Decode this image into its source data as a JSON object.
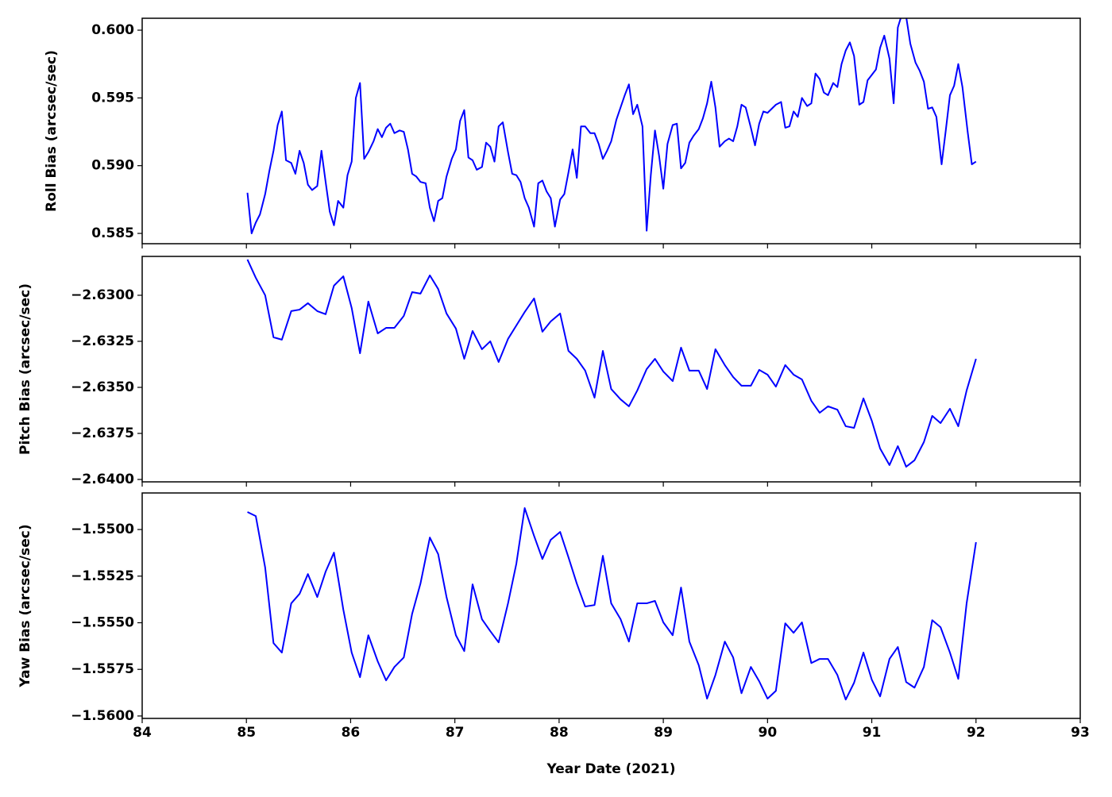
{
  "chart_data": [
    {
      "type": "line",
      "ylabel": "Roll Bias (arcsec/sec)",
      "color": "blue",
      "xlim": [
        84,
        93
      ],
      "xticks": [
        84,
        85,
        86,
        87,
        88,
        89,
        90,
        91,
        92,
        93
      ],
      "ylim": [
        0.58424,
        0.60088
      ],
      "yticks": [
        0.585,
        {
          "value": 0.59,
          "label": "0.590"
        },
        0.595,
        {
          "value": 0.6,
          "label": "0.600"
        }
      ],
      "x": [
        85.01,
        85.05,
        85.09,
        85.13,
        85.18,
        85.22,
        85.26,
        85.3,
        85.34,
        85.38,
        85.43,
        85.47,
        85.51,
        85.55,
        85.59,
        85.63,
        85.68,
        85.72,
        85.76,
        85.8,
        85.84,
        85.88,
        85.93,
        85.97,
        86.01,
        86.05,
        86.09,
        86.13,
        86.17,
        86.22,
        86.26,
        86.3,
        86.34,
        86.38,
        86.42,
        86.47,
        86.51,
        86.55,
        86.59,
        86.63,
        86.67,
        86.72,
        86.76,
        86.8,
        86.84,
        86.88,
        86.92,
        86.97,
        87.01,
        87.05,
        87.09,
        87.13,
        87.17,
        87.21,
        87.26,
        87.3,
        87.34,
        87.38,
        87.42,
        87.46,
        87.51,
        87.55,
        87.59,
        87.63,
        87.67,
        87.71,
        87.76,
        87.8,
        87.84,
        87.88,
        87.92,
        87.96,
        88.01,
        88.05,
        88.09,
        88.13,
        88.17,
        88.21,
        88.25,
        88.3,
        88.34,
        88.38,
        88.42,
        88.46,
        88.5,
        88.55,
        88.59,
        88.63,
        88.67,
        88.71,
        88.75,
        88.8,
        88.84,
        88.88,
        88.92,
        88.96,
        89.0,
        89.04,
        89.09,
        89.13,
        89.17,
        89.21,
        89.25,
        89.29,
        89.34,
        89.38,
        89.42,
        89.46,
        89.5,
        89.54,
        89.59,
        89.63,
        89.67,
        89.71,
        89.75,
        89.79,
        89.84,
        89.88,
        89.92,
        89.96,
        90.0,
        90.04,
        90.08,
        90.13,
        90.17,
        90.21,
        90.25,
        90.29,
        90.33,
        90.38,
        90.42,
        90.46,
        90.5,
        90.54,
        90.58,
        90.63,
        90.67,
        90.71,
        90.75,
        90.79,
        90.83,
        90.88,
        90.92,
        90.96,
        91.0,
        91.04,
        91.08,
        91.12,
        91.17,
        91.21,
        91.25,
        91.29,
        91.33,
        91.37,
        91.42,
        91.46,
        91.5,
        91.54,
        91.58,
        91.62,
        91.67,
        91.71,
        91.75,
        91.79,
        91.83,
        91.87,
        91.92,
        91.96,
        92.0
      ],
      "values": [
        0.588,
        0.585,
        0.5858,
        0.5864,
        0.5879,
        0.5896,
        0.5911,
        0.593,
        0.594,
        0.5904,
        0.5902,
        0.5894,
        0.5911,
        0.5902,
        0.5886,
        0.5882,
        0.5885,
        0.5911,
        0.5888,
        0.5866,
        0.5856,
        0.5874,
        0.5869,
        0.5893,
        0.5903,
        0.595,
        0.5961,
        0.5905,
        0.591,
        0.5918,
        0.5927,
        0.5921,
        0.5928,
        0.5931,
        0.5924,
        0.5926,
        0.5925,
        0.5912,
        0.5894,
        0.5892,
        0.5888,
        0.5887,
        0.5869,
        0.5859,
        0.5874,
        0.5876,
        0.5892,
        0.5905,
        0.5912,
        0.5933,
        0.5941,
        0.5906,
        0.5904,
        0.5897,
        0.5899,
        0.5917,
        0.5914,
        0.5903,
        0.5929,
        0.5932,
        0.591,
        0.5894,
        0.5893,
        0.5888,
        0.5876,
        0.5869,
        0.5855,
        0.5887,
        0.5889,
        0.5881,
        0.5876,
        0.5855,
        0.5875,
        0.5879,
        0.5895,
        0.5912,
        0.5891,
        0.5929,
        0.5929,
        0.5924,
        0.5924,
        0.5916,
        0.5905,
        0.5911,
        0.5918,
        0.5934,
        0.5943,
        0.5952,
        0.596,
        0.5938,
        0.5945,
        0.5929,
        0.5852,
        0.5893,
        0.5926,
        0.5907,
        0.5883,
        0.5916,
        0.593,
        0.5931,
        0.5898,
        0.5902,
        0.5917,
        0.5922,
        0.5927,
        0.5935,
        0.5946,
        0.5962,
        0.5943,
        0.5914,
        0.5918,
        0.592,
        0.5918,
        0.5929,
        0.5945,
        0.5943,
        0.5928,
        0.5915,
        0.5931,
        0.594,
        0.5939,
        0.5942,
        0.5945,
        0.5947,
        0.5928,
        0.5929,
        0.594,
        0.5936,
        0.595,
        0.5944,
        0.5946,
        0.5968,
        0.5964,
        0.5954,
        0.5952,
        0.5961,
        0.5958,
        0.5975,
        0.5985,
        0.5991,
        0.5981,
        0.5945,
        0.5947,
        0.5963,
        0.5967,
        0.5971,
        0.5987,
        0.5996,
        0.5979,
        0.5946,
        0.6002,
        0.6012,
        0.601,
        0.599,
        0.5976,
        0.597,
        0.5962,
        0.5942,
        0.5943,
        0.5936,
        0.5901,
        0.5926,
        0.5952,
        0.5959,
        0.5975,
        0.5958,
        0.5925,
        0.5901,
        0.5903
      ]
    },
    {
      "type": "line",
      "ylabel": "Pitch Bias (arcsec/sec)",
      "color": "blue",
      "xlim": [
        84,
        93
      ],
      "xticks": [
        84,
        85,
        86,
        87,
        88,
        89,
        90,
        91,
        92,
        93
      ],
      "ylim": [
        -2.64013,
        -2.62789
      ],
      "yticks": [
        {
          "value": -2.64,
          "label": "−2.6400"
        },
        {
          "value": -2.6375,
          "label": "−2.6375"
        },
        {
          "value": -2.635,
          "label": "−2.6350"
        },
        {
          "value": -2.6325,
          "label": "−2.6325"
        },
        {
          "value": -2.63,
          "label": "−2.6300"
        }
      ],
      "x": [
        85.01,
        85.09,
        85.18,
        85.26,
        85.34,
        85.43,
        85.51,
        85.59,
        85.68,
        85.76,
        85.84,
        85.93,
        86.01,
        86.09,
        86.17,
        86.26,
        86.34,
        86.42,
        86.51,
        86.59,
        86.67,
        86.76,
        86.84,
        86.92,
        87.01,
        87.09,
        87.17,
        87.26,
        87.34,
        87.42,
        87.51,
        87.59,
        87.67,
        87.76,
        87.84,
        87.92,
        88.01,
        88.09,
        88.17,
        88.25,
        88.34,
        88.42,
        88.5,
        88.59,
        88.67,
        88.75,
        88.84,
        88.92,
        89.0,
        89.09,
        89.17,
        89.25,
        89.34,
        89.42,
        89.5,
        89.59,
        89.67,
        89.75,
        89.84,
        89.92,
        90.0,
        90.08,
        90.17,
        90.25,
        90.33,
        90.42,
        90.5,
        90.58,
        90.67,
        90.75,
        90.83,
        90.92,
        91.0,
        91.08,
        91.17,
        91.25,
        91.33,
        91.41,
        91.5,
        91.58,
        91.66,
        91.75,
        91.83,
        91.91,
        92.0
      ],
      "values": [
        -2.62806,
        -2.62905,
        -2.63,
        -2.63228,
        -2.63241,
        -2.63086,
        -2.63078,
        -2.63043,
        -2.63086,
        -2.63103,
        -2.62948,
        -2.62897,
        -2.63069,
        -2.63315,
        -2.63034,
        -2.63207,
        -2.63177,
        -2.63177,
        -2.63112,
        -2.62983,
        -2.62991,
        -2.62892,
        -2.62966,
        -2.63099,
        -2.63181,
        -2.63345,
        -2.63194,
        -2.63293,
        -2.6325,
        -2.63362,
        -2.63237,
        -2.63164,
        -2.63091,
        -2.63017,
        -2.63198,
        -2.63142,
        -2.63099,
        -2.63302,
        -2.63345,
        -2.63409,
        -2.63556,
        -2.63302,
        -2.63509,
        -2.63565,
        -2.63603,
        -2.63517,
        -2.63401,
        -2.63345,
        -2.63414,
        -2.63466,
        -2.63284,
        -2.63409,
        -2.63409,
        -2.63509,
        -2.63293,
        -2.63379,
        -2.63444,
        -2.63491,
        -2.63491,
        -2.63405,
        -2.63431,
        -2.63496,
        -2.63379,
        -2.63431,
        -2.63457,
        -2.63573,
        -2.63638,
        -2.63603,
        -2.63621,
        -2.63711,
        -2.6372,
        -2.6356,
        -2.63681,
        -2.63832,
        -2.63922,
        -2.63819,
        -2.63931,
        -2.63896,
        -2.63797,
        -2.63655,
        -2.63694,
        -2.63616,
        -2.63711,
        -2.63517,
        -2.63345
      ]
    },
    {
      "type": "line",
      "ylabel": "Yaw Bias (arcsec/sec)",
      "xlabel": "Year Date (2021)",
      "color": "blue",
      "xlim": [
        84,
        93
      ],
      "xticks": [
        84,
        85,
        86,
        87,
        88,
        89,
        90,
        91,
        92,
        93
      ],
      "ylim": [
        -1.56013,
        -1.54804
      ],
      "yticks": [
        {
          "value": -1.56,
          "label": "−1.5600"
        },
        {
          "value": -1.5575,
          "label": "−1.5575"
        },
        {
          "value": -1.555,
          "label": "−1.5550"
        },
        {
          "value": -1.5525,
          "label": "−1.5525"
        },
        {
          "value": -1.55,
          "label": "−1.5500"
        }
      ],
      "x": [
        85.01,
        85.09,
        85.18,
        85.26,
        85.34,
        85.43,
        85.51,
        85.59,
        85.68,
        85.76,
        85.84,
        85.93,
        86.01,
        86.09,
        86.17,
        86.26,
        86.34,
        86.42,
        86.51,
        86.59,
        86.67,
        86.76,
        86.84,
        86.92,
        87.01,
        87.09,
        87.17,
        87.26,
        87.34,
        87.42,
        87.51,
        87.59,
        87.67,
        87.76,
        87.84,
        87.92,
        88.01,
        88.09,
        88.17,
        88.25,
        88.34,
        88.42,
        88.5,
        88.59,
        88.67,
        88.75,
        88.84,
        88.92,
        89.0,
        89.09,
        89.17,
        89.25,
        89.34,
        89.42,
        89.5,
        89.59,
        89.67,
        89.75,
        89.84,
        89.92,
        90.0,
        90.08,
        90.17,
        90.25,
        90.33,
        90.42,
        90.5,
        90.58,
        90.67,
        90.75,
        90.83,
        90.92,
        91.0,
        91.08,
        91.17,
        91.25,
        91.33,
        91.41,
        91.5,
        91.58,
        91.66,
        91.75,
        91.83,
        91.91,
        92.0
      ],
      "values": [
        -1.54906,
        -1.54928,
        -1.55204,
        -1.55609,
        -1.5566,
        -1.55396,
        -1.55345,
        -1.55239,
        -1.55362,
        -1.55226,
        -1.55124,
        -1.5543,
        -1.5566,
        -1.55792,
        -1.55567,
        -1.55707,
        -1.55809,
        -1.55737,
        -1.55686,
        -1.55452,
        -1.5529,
        -1.55043,
        -1.55132,
        -1.55362,
        -1.55567,
        -1.55652,
        -1.55294,
        -1.55481,
        -1.55545,
        -1.55605,
        -1.55396,
        -1.55183,
        -1.54885,
        -1.55034,
        -1.55158,
        -1.55055,
        -1.55013,
        -1.55149,
        -1.5529,
        -1.55413,
        -1.55405,
        -1.55141,
        -1.55396,
        -1.55481,
        -1.55601,
        -1.55396,
        -1.55396,
        -1.55383,
        -1.55498,
        -1.55567,
        -1.55311,
        -1.55601,
        -1.55728,
        -1.55907,
        -1.5578,
        -1.55601,
        -1.55686,
        -1.55878,
        -1.55737,
        -1.55814,
        -1.55907,
        -1.55865,
        -1.55503,
        -1.55554,
        -1.55498,
        -1.55716,
        -1.55694,
        -1.55694,
        -1.5578,
        -1.55912,
        -1.55822,
        -1.5566,
        -1.55805,
        -1.55895,
        -1.55694,
        -1.5563,
        -1.55818,
        -1.55848,
        -1.55737,
        -1.55486,
        -1.55524,
        -1.5566,
        -1.55801,
        -1.55396,
        -1.55068
      ]
    }
  ]
}
